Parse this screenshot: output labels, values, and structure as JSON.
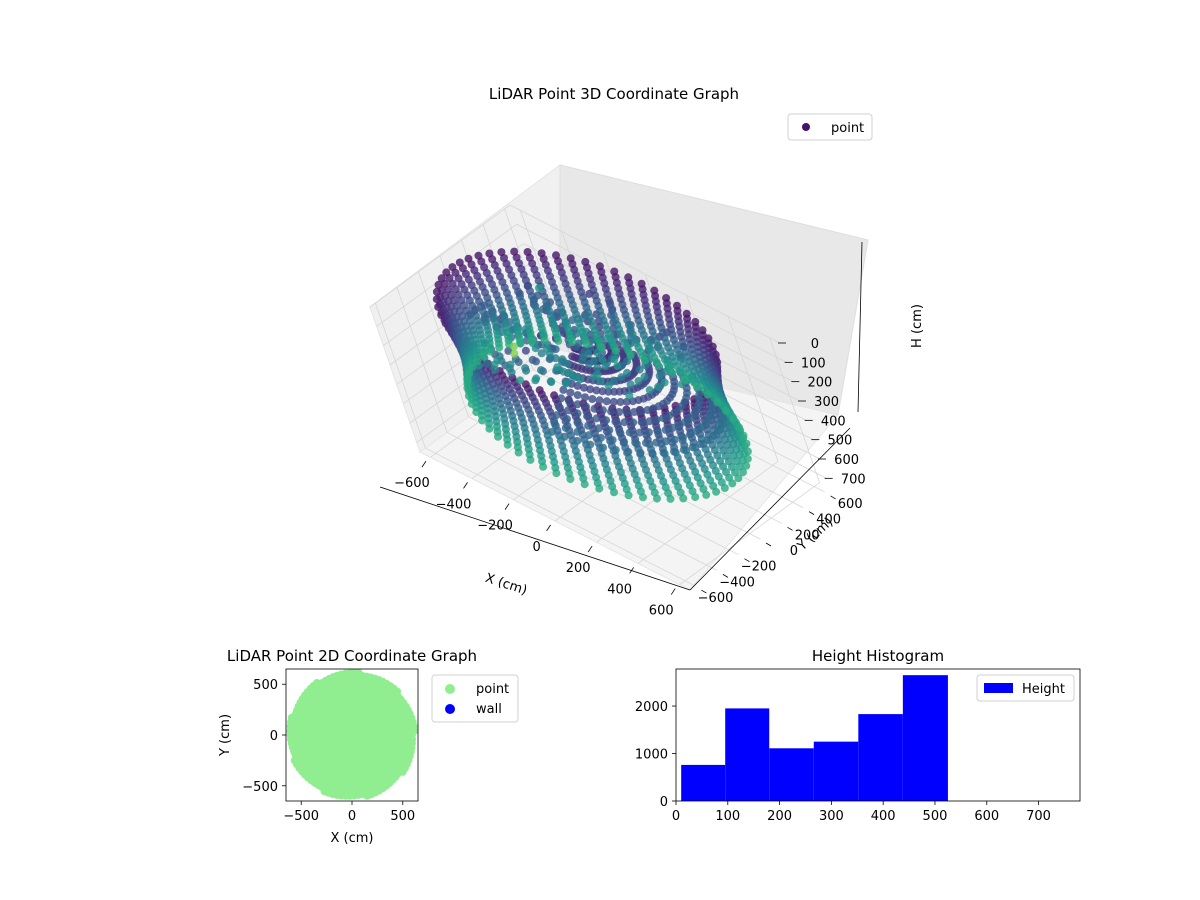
{
  "chart_data": [
    {
      "type": "scatter",
      "projection": "3d",
      "title": "LiDAR Point 3D Coordinate Graph",
      "xlabel": "X (cm)",
      "ylabel": "Y (cm)",
      "zlabel": "H (cm)",
      "x_ticks": [
        "−600",
        "−400",
        "−200",
        "0",
        "200",
        "400",
        "600"
      ],
      "y_ticks": [
        "600",
        "400",
        "200",
        "0",
        "−200",
        "−400",
        "−600"
      ],
      "z_ticks": [
        "0",
        "100",
        "200",
        "300",
        "400",
        "500",
        "600",
        "700"
      ],
      "xlim": [
        -650,
        650
      ],
      "ylim": [
        -650,
        650
      ],
      "zlim": [
        0,
        750
      ],
      "z_inverted": true,
      "legend": {
        "entries": [
          {
            "label": "point",
            "color": "#471365"
          }
        ],
        "placement": "top-right"
      },
      "colormap": "viridis",
      "grid": true,
      "shape": "ring of points, outer radius ≈ 600 cm, heights 0–525 cm"
    },
    {
      "type": "scatter",
      "title": "LiDAR Point 2D Coordinate Graph",
      "xlabel": "X (cm)",
      "ylabel": "Y (cm)",
      "x_ticks": [
        "−500",
        "0",
        "500"
      ],
      "y_ticks": [
        "500",
        "0",
        "−500"
      ],
      "xlim": [
        -650,
        650
      ],
      "ylim": [
        -650,
        650
      ],
      "series": [
        {
          "name": "point",
          "color": "#90ee90",
          "shape": "filled disk, radius ≈ 600 cm"
        },
        {
          "name": "wall",
          "color": "#0000ff"
        }
      ],
      "legend": {
        "placement": "outside-right"
      }
    },
    {
      "type": "bar",
      "title": "Height Histogram",
      "series": [
        {
          "name": "Height",
          "color": "#0000ff"
        }
      ],
      "bins": [
        {
          "from": 10,
          "to": 95,
          "count": 760
        },
        {
          "from": 95,
          "to": 180,
          "count": 1950
        },
        {
          "from": 180,
          "to": 266,
          "count": 1110
        },
        {
          "from": 266,
          "to": 352,
          "count": 1250
        },
        {
          "from": 352,
          "to": 438,
          "count": 1830
        },
        {
          "from": 438,
          "to": 525,
          "count": 2650
        }
      ],
      "x_ticks": [
        "0",
        "100",
        "200",
        "300",
        "400",
        "500",
        "600",
        "700"
      ],
      "y_ticks": [
        "0",
        "1000",
        "2000"
      ],
      "xlim": [
        0,
        780
      ],
      "ylim": [
        0,
        2780
      ],
      "legend": {
        "placement": "top-right"
      }
    }
  ]
}
